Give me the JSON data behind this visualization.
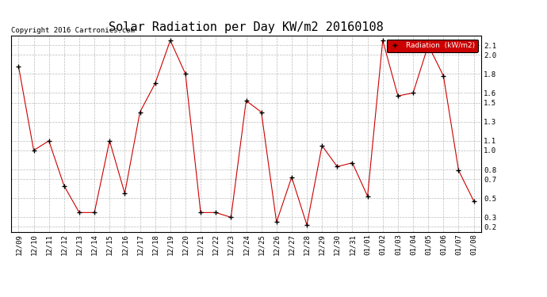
{
  "title": "Solar Radiation per Day KW/m2 20160108",
  "copyright": "Copyright 2016 Cartronics.com",
  "legend_label": "Radiation  (kW/m2)",
  "x_labels": [
    "12/09",
    "12/10",
    "12/11",
    "12/12",
    "12/13",
    "12/14",
    "12/15",
    "12/16",
    "12/17",
    "12/18",
    "12/19",
    "12/20",
    "12/21",
    "12/22",
    "12/23",
    "12/24",
    "12/25",
    "12/26",
    "12/27",
    "12/28",
    "12/29",
    "12/30",
    "12/31",
    "01/01",
    "01/02",
    "01/03",
    "01/04",
    "01/05",
    "01/06",
    "01/07",
    "01/08"
  ],
  "y_values": [
    1.88,
    1.0,
    1.1,
    0.63,
    0.35,
    0.35,
    1.1,
    0.55,
    1.4,
    1.7,
    2.15,
    1.8,
    0.35,
    0.35,
    0.3,
    1.52,
    1.4,
    0.25,
    0.72,
    0.22,
    1.05,
    0.83,
    0.87,
    0.52,
    2.15,
    1.57,
    1.6,
    2.1,
    1.78,
    0.79,
    0.47
  ],
  "line_color": "#cc0000",
  "marker_color": "#000000",
  "background_color": "#ffffff",
  "grid_color": "#bbbbbb",
  "ylim": [
    0.15,
    2.2
  ],
  "yticks": [
    0.2,
    0.3,
    0.5,
    0.7,
    0.8,
    1.0,
    1.1,
    1.3,
    1.5,
    1.6,
    1.8,
    2.0,
    2.1
  ],
  "legend_bg": "#cc0000",
  "legend_text_color": "#ffffff",
  "title_fontsize": 11,
  "tick_fontsize": 6.5,
  "copyright_fontsize": 6.5
}
